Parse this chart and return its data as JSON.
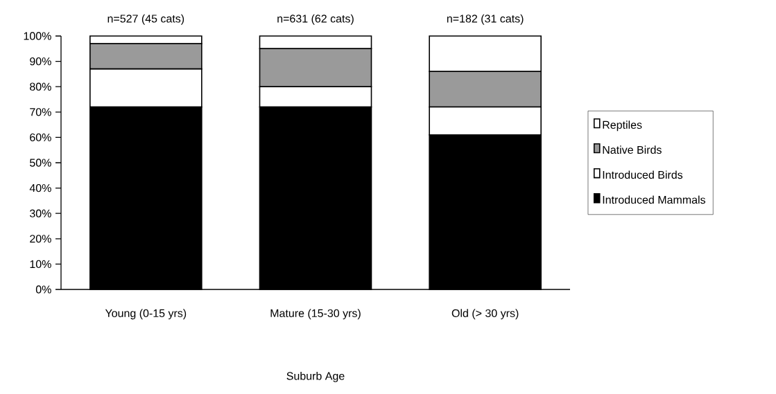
{
  "chart_data": {
    "type": "bar",
    "stacked": true,
    "xlabel": "Suburb Age",
    "categories": [
      "Young (0-15 yrs)",
      "Mature (15-30 yrs)",
      "Old (> 30 yrs)"
    ],
    "series": [
      {
        "name": "Introduced Mammals",
        "color": "#000000",
        "values": [
          72,
          72,
          61
        ]
      },
      {
        "name": "Introduced Birds",
        "color": "#ffffff",
        "values": [
          15,
          8,
          11
        ]
      },
      {
        "name": "Native Birds",
        "color": "#9a9a9a",
        "values": [
          10,
          15,
          14
        ]
      },
      {
        "name": "Reptiles",
        "color": "#ffffff",
        "values": [
          3,
          5,
          14
        ]
      }
    ],
    "ylim": [
      0,
      100
    ],
    "yticks": [
      {
        "value": 0,
        "label": "0%"
      },
      {
        "value": 10,
        "label": "10%"
      },
      {
        "value": 20,
        "label": "20%"
      },
      {
        "value": 30,
        "label": "30%"
      },
      {
        "value": 40,
        "label": "40%"
      },
      {
        "value": 50,
        "label": "50%"
      },
      {
        "value": 60,
        "label": "60%"
      },
      {
        "value": 70,
        "label": "70%"
      },
      {
        "value": 80,
        "label": "80%"
      },
      {
        "value": 90,
        "label": "90%"
      },
      {
        "value": 100,
        "label": "100%"
      }
    ],
    "annotations": [
      "n=527 (45 cats)",
      "n=631 (62 cats)",
      "n=182 (31 cats)"
    ],
    "legend": "right",
    "grid": false
  }
}
